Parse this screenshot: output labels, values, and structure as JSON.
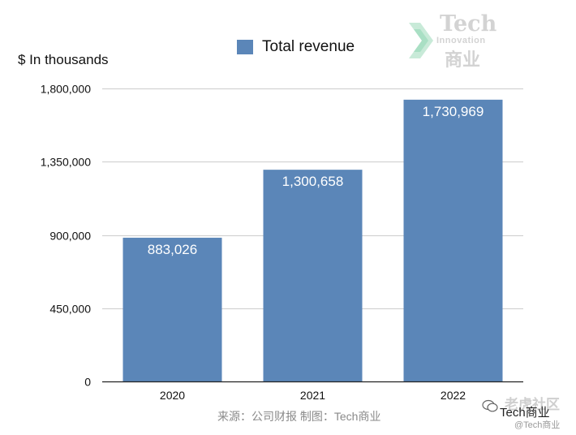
{
  "chart_data": {
    "type": "bar",
    "categories": [
      "2020",
      "2021",
      "2022"
    ],
    "series": [
      {
        "name": "Total revenue",
        "values": [
          883026,
          1300658,
          1730969
        ]
      }
    ],
    "data_labels": [
      "883,026",
      "1,300,658",
      "1,730,969"
    ],
    "ylabel": "$ In thousands",
    "ylim": [
      0,
      1800000
    ],
    "yticks": [
      0,
      450000,
      900000,
      1350000,
      1800000
    ],
    "ytick_labels": [
      "0",
      "450,000",
      "900,000",
      "1,350,000",
      "1,800,000"
    ],
    "grid": true,
    "legend": "top-center",
    "bar_color": "#5b86b8"
  },
  "source_note": "来源：公司财报 制图：Tech商业",
  "logo": {
    "line1": "Tech",
    "line2": "Innovation",
    "line3": "商业"
  },
  "watermark": {
    "top": "老虎社区",
    "middle": "Tech商业",
    "bottom": "@Tech商业"
  }
}
